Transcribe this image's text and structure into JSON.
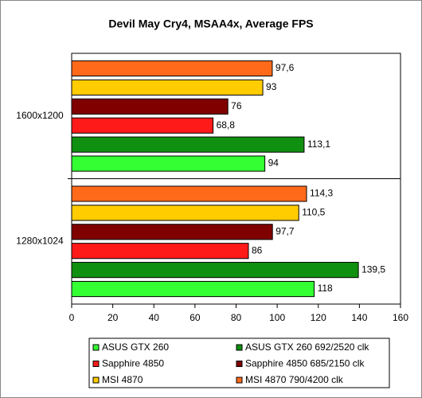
{
  "chart_data": {
    "type": "bar",
    "orientation": "horizontal",
    "title": "Devil May Cry4, MSAA4x, Average FPS",
    "categories": [
      "1600x1200",
      "1280x1024"
    ],
    "series": [
      {
        "name": "ASUS GTX 260",
        "color": "#33ff33",
        "values": [
          94,
          118
        ],
        "value_labels": [
          "94",
          "118"
        ]
      },
      {
        "name": "ASUS GTX 260 692/2520 clk",
        "color": "#109010",
        "values": [
          113.1,
          139.5
        ],
        "value_labels": [
          "113,1",
          "139,5"
        ]
      },
      {
        "name": "Sapphire 4850",
        "color": "#ff1a1a",
        "values": [
          68.8,
          86
        ],
        "value_labels": [
          "68,8",
          "86"
        ]
      },
      {
        "name": "Sapphire 4850 685/2150 clk",
        "color": "#800000",
        "values": [
          76,
          97.7
        ],
        "value_labels": [
          "76",
          "97,7"
        ]
      },
      {
        "name": "MSI 4870",
        "color": "#ffcc00",
        "values": [
          93,
          110.5
        ],
        "value_labels": [
          "93",
          "110,5"
        ]
      },
      {
        "name": "MSI 4870 790/4200 clk",
        "color": "#ff6a1a",
        "values": [
          97.6,
          114.3
        ],
        "value_labels": [
          "97,6",
          "114,3"
        ]
      }
    ],
    "xlim": [
      0,
      160
    ],
    "xticks": [
      0,
      20,
      40,
      60,
      80,
      100,
      120,
      140,
      160
    ],
    "legend": "bottom"
  }
}
